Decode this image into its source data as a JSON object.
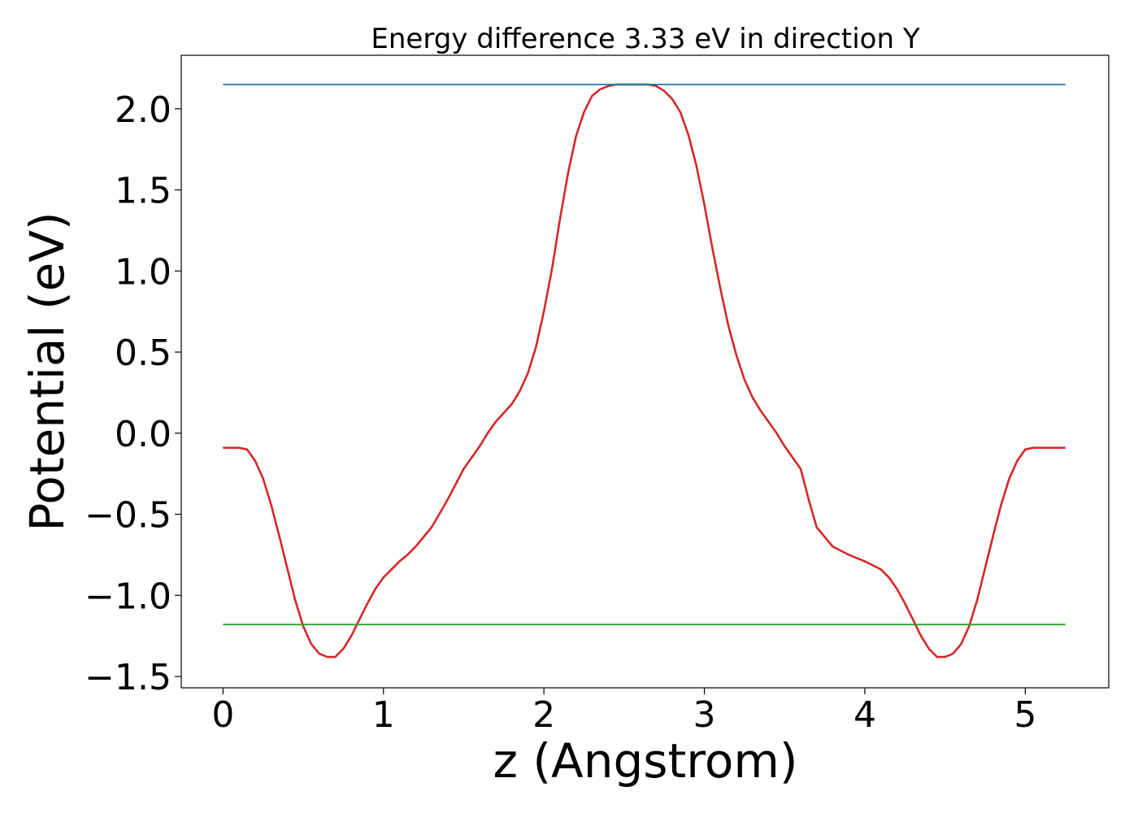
{
  "chart_data": {
    "type": "line",
    "title": "Energy difference 3.33 eV in direction Y",
    "xlabel": "z (Angstrom)",
    "ylabel": "Potential (eV)",
    "xlim": [
      -0.26,
      5.52
    ],
    "ylim": [
      -1.57,
      2.33
    ],
    "xticks": [
      0,
      1,
      2,
      3,
      4,
      5
    ],
    "xtick_labels": [
      "0",
      "1",
      "2",
      "3",
      "4",
      "5"
    ],
    "yticks": [
      -1.5,
      -1.0,
      -0.5,
      0.0,
      0.5,
      1.0,
      1.5,
      2.0
    ],
    "ytick_labels": [
      "−1.5",
      "−1.0",
      "−0.5",
      "0.0",
      "0.5",
      "1.0",
      "1.5",
      "2.0"
    ],
    "grid": false,
    "series": [
      {
        "color": "#d62728",
        "x": [
          0.0,
          0.1,
          0.15,
          0.2,
          0.25,
          0.3,
          0.35,
          0.4,
          0.45,
          0.5,
          0.55,
          0.6,
          0.65,
          0.7,
          0.75,
          0.8,
          0.85,
          0.9,
          0.95,
          1.0,
          1.05,
          1.1,
          1.15,
          1.2,
          1.3,
          1.4,
          1.5,
          1.6,
          1.65,
          1.7,
          1.8,
          1.85,
          1.9,
          1.95,
          2.0,
          2.05,
          2.1,
          2.15,
          2.2,
          2.25,
          2.3,
          2.35,
          2.4,
          2.45,
          2.5,
          2.55,
          2.6,
          2.65,
          2.7,
          2.75,
          2.8,
          2.85,
          2.9,
          2.95,
          3.0,
          3.05,
          3.1,
          3.15,
          3.2,
          3.25,
          3.3,
          3.35,
          3.4,
          3.45,
          3.5,
          3.6,
          3.65,
          3.7,
          3.8,
          3.9,
          4.0,
          4.1,
          4.15,
          4.2,
          4.25,
          4.3,
          4.35,
          4.4,
          4.45,
          4.5,
          4.55,
          4.6,
          4.65,
          4.7,
          4.75,
          4.8,
          4.85,
          4.9,
          4.95,
          5.0,
          5.05,
          5.1,
          5.15,
          5.25
        ],
        "y": [
          -0.09,
          -0.09,
          -0.1,
          -0.17,
          -0.28,
          -0.44,
          -0.63,
          -0.83,
          -1.03,
          -1.19,
          -1.3,
          -1.36,
          -1.38,
          -1.38,
          -1.33,
          -1.25,
          -1.15,
          -1.05,
          -0.96,
          -0.89,
          -0.84,
          -0.79,
          -0.75,
          -0.7,
          -0.58,
          -0.41,
          -0.22,
          -0.08,
          0.0,
          0.07,
          0.18,
          0.26,
          0.37,
          0.53,
          0.75,
          1.01,
          1.32,
          1.6,
          1.83,
          1.98,
          2.08,
          2.12,
          2.14,
          2.15,
          2.15,
          2.15,
          2.15,
          2.15,
          2.14,
          2.11,
          2.06,
          1.98,
          1.84,
          1.65,
          1.41,
          1.14,
          0.89,
          0.66,
          0.48,
          0.33,
          0.22,
          0.14,
          0.07,
          0.0,
          -0.08,
          -0.22,
          -0.41,
          -0.58,
          -0.7,
          -0.75,
          -0.79,
          -0.84,
          -0.89,
          -0.96,
          -1.05,
          -1.15,
          -1.25,
          -1.33,
          -1.38,
          -1.38,
          -1.36,
          -1.3,
          -1.19,
          -1.03,
          -0.83,
          -0.63,
          -0.44,
          -0.28,
          -0.17,
          -0.1,
          -0.09,
          -0.09,
          -0.09,
          -0.09
        ]
      },
      {
        "color": "#1f77b4",
        "x": [
          0.0,
          5.25
        ],
        "y": [
          2.15,
          2.15
        ]
      },
      {
        "color": "#2ca02c",
        "x": [
          0.0,
          5.25
        ],
        "y": [
          -1.18,
          -1.18
        ]
      }
    ]
  }
}
